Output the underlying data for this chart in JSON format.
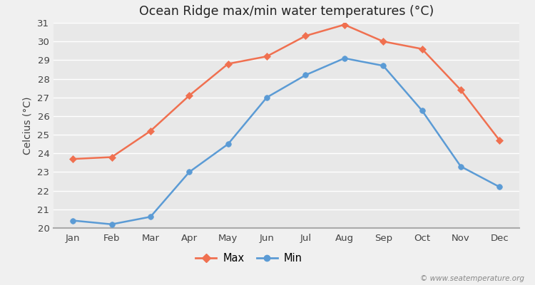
{
  "months": [
    "Jan",
    "Feb",
    "Mar",
    "Apr",
    "May",
    "Jun",
    "Jul",
    "Aug",
    "Sep",
    "Oct",
    "Nov",
    "Dec"
  ],
  "max_temps": [
    23.7,
    23.8,
    25.2,
    27.1,
    28.8,
    29.2,
    30.3,
    30.9,
    30.0,
    29.6,
    27.4,
    24.7
  ],
  "min_temps": [
    20.4,
    20.2,
    20.6,
    23.0,
    24.5,
    27.0,
    28.2,
    29.1,
    28.7,
    26.3,
    23.3,
    22.2
  ],
  "max_color": "#f07050",
  "min_color": "#5b9bd5",
  "title": "Ocean Ridge max/min water temperatures (°C)",
  "ylabel": "Celcius (°C)",
  "ylim": [
    20,
    31
  ],
  "yticks": [
    20,
    21,
    22,
    23,
    24,
    25,
    26,
    27,
    28,
    29,
    30,
    31
  ],
  "bg_color": "#e8e8e8",
  "fig_bg_color": "#f0f0f0",
  "grid_color": "#ffffff",
  "watermark": "© www.seatemperature.org",
  "legend_max": "Max",
  "legend_min": "Min"
}
